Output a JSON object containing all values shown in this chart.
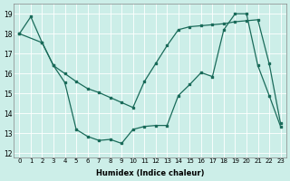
{
  "xlabel": "Humidex (Indice chaleur)",
  "background_color": "#cceee8",
  "line_color": "#1a6b5a",
  "ylim": [
    11.8,
    19.5
  ],
  "xlim": [
    -0.5,
    23.5
  ],
  "yticks": [
    12,
    13,
    14,
    15,
    16,
    17,
    18,
    19
  ],
  "xticks": [
    0,
    1,
    2,
    3,
    4,
    5,
    6,
    7,
    8,
    9,
    10,
    11,
    12,
    13,
    14,
    15,
    16,
    17,
    18,
    19,
    20,
    21,
    22,
    23
  ],
  "xtick_labels": [
    "0",
    "1",
    "2",
    "3",
    "4",
    "5",
    "6",
    "7",
    "8",
    "9",
    "10",
    "11",
    "12",
    "13",
    "14",
    "15",
    "16",
    "17",
    "18",
    "19",
    "20",
    "21",
    "22",
    "23"
  ],
  "line1_x": [
    0,
    1,
    2,
    3,
    4,
    5,
    6,
    7,
    8,
    9,
    10,
    11,
    12,
    13,
    14,
    15,
    16,
    17,
    18,
    19,
    20,
    21,
    22,
    23
  ],
  "line1_y": [
    18.0,
    18.85,
    17.55,
    16.4,
    15.55,
    13.2,
    12.85,
    12.65,
    12.7,
    12.5,
    13.2,
    13.35,
    13.4,
    13.4,
    14.9,
    15.45,
    16.05,
    15.85,
    18.2,
    19.0,
    19.0,
    16.4,
    14.9,
    13.35
  ],
  "line2_x": [
    0,
    2,
    3,
    4,
    5,
    6,
    7,
    8,
    9,
    10,
    11,
    12,
    13,
    14,
    15,
    16,
    17,
    18,
    19,
    20,
    21,
    22,
    23
  ],
  "line2_y": [
    18.0,
    17.55,
    16.4,
    16.0,
    15.6,
    15.25,
    15.05,
    14.8,
    14.55,
    14.3,
    15.6,
    16.5,
    17.4,
    18.2,
    18.35,
    18.4,
    18.45,
    18.5,
    18.6,
    18.65,
    18.7,
    16.5,
    13.5
  ]
}
